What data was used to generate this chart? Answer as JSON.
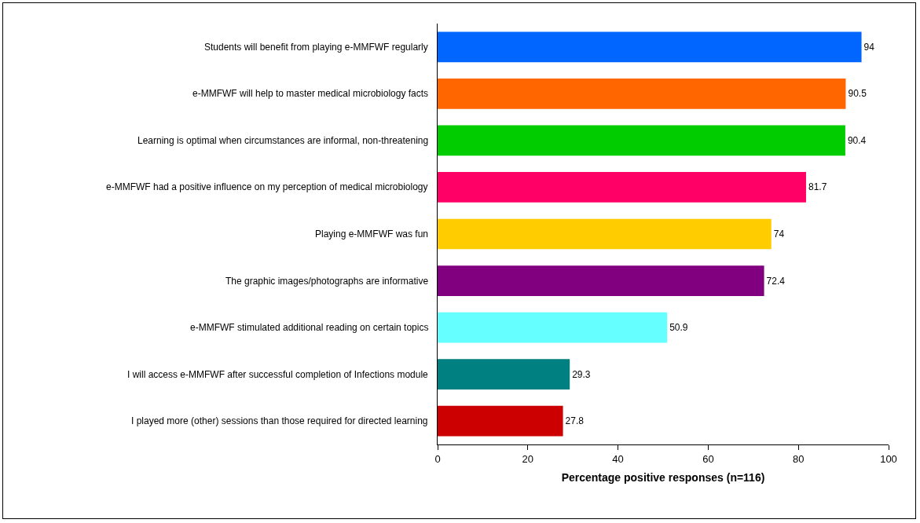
{
  "chart_data": {
    "type": "bar",
    "orientation": "horizontal",
    "xlabel": "Percentage positive responses (n=116)",
    "categories": [
      "Students will benefit from playing e-MMFWF regularly",
      "e-MMFWF will help to master medical microbiology facts",
      "Learning is optimal when circumstances are informal, non-threatening",
      "e-MMFWF had a positive influence on my perception of medical microbiology",
      "Playing e-MMFWF was fun",
      "The graphic images/photographs are informative",
      "e-MMFWF stimulated additional reading on certain topics",
      "I will access e-MMFWF after successful completion of Infections module",
      "I played more (other) sessions than those required for directed learning"
    ],
    "values": [
      94,
      90.5,
      90.4,
      81.7,
      74,
      72.4,
      50.9,
      29.3,
      27.8
    ],
    "colors": [
      "#0066ff",
      "#ff6600",
      "#00cc00",
      "#ff0066",
      "#ffcc00",
      "#800080",
      "#66ffff",
      "#008080",
      "#cc0000"
    ],
    "data_labels": true,
    "xlim": [
      0,
      100
    ],
    "xticks": [
      0,
      20,
      40,
      60,
      80,
      100
    ],
    "grid": false
  }
}
